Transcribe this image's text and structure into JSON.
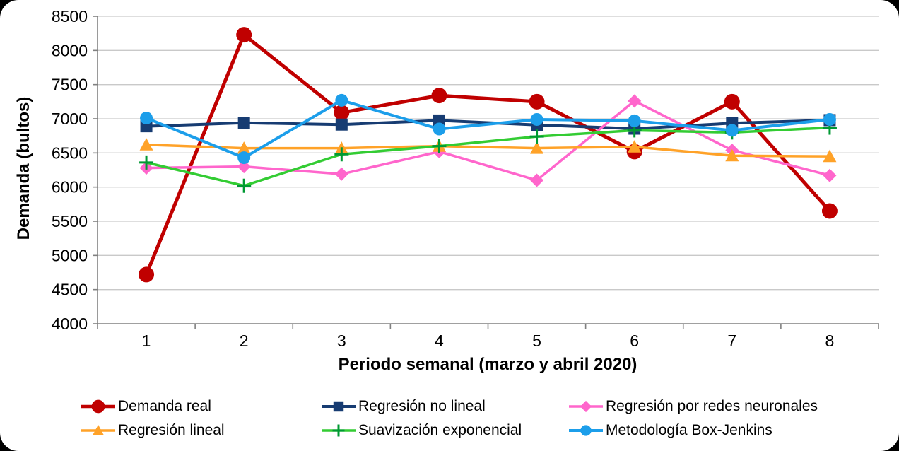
{
  "chart_data": {
    "type": "line",
    "title": "",
    "xlabel": "Periodo semanal (marzo y abril 2020)",
    "ylabel": "Demanda (bultos)",
    "categories": [
      "1",
      "2",
      "3",
      "4",
      "5",
      "6",
      "7",
      "8"
    ],
    "ylim": [
      4000,
      8500
    ],
    "ytick_step": 500,
    "yticks": [
      4000,
      4500,
      5000,
      5500,
      6000,
      6500,
      7000,
      7500,
      8000,
      8500
    ],
    "grid": "horizontal-only",
    "legend_position": "bottom",
    "axis_color": "#808080",
    "gridline_color": "#C9C9C9",
    "series": [
      {
        "name": "Demanda real",
        "marker": "circle",
        "color": "#C00000",
        "line_width": 5,
        "marker_size": 11,
        "values": [
          4720,
          8230,
          7090,
          7340,
          7250,
          6520,
          7250,
          5650
        ]
      },
      {
        "name": "Regresión no lineal",
        "marker": "square",
        "color": "#173C72",
        "line_width": 4,
        "marker_size": 8.5,
        "values": [
          6890,
          6940,
          6915,
          6975,
          6910,
          6855,
          6935,
          6980
        ]
      },
      {
        "name": "Regresión por redes neuronales",
        "marker": "diamond",
        "color": "#FF66CC",
        "line_width": 3.5,
        "marker_size": 9.5,
        "values": [
          6280,
          6300,
          6190,
          6520,
          6100,
          7260,
          6540,
          6170
        ]
      },
      {
        "name": "Regresión lineal",
        "marker": "triangle",
        "color": "#FFA228",
        "line_width": 3.5,
        "marker_size": 9.5,
        "values": [
          6620,
          6570,
          6570,
          6600,
          6570,
          6590,
          6460,
          6450
        ]
      },
      {
        "name": "Suavización exponencial",
        "marker": "plus",
        "color": "#33CC33",
        "marker_color": "#009933",
        "line_width": 3.5,
        "marker_size": 10,
        "values": [
          6360,
          6020,
          6480,
          6600,
          6740,
          6830,
          6800,
          6870
        ]
      },
      {
        "name": "Metodología Box-Jenkins",
        "marker": "circle",
        "color": "#1C9EEA",
        "line_width": 4,
        "marker_size": 9,
        "values": [
          7010,
          6430,
          7270,
          6850,
          6990,
          6970,
          6830,
          6990
        ]
      }
    ]
  }
}
